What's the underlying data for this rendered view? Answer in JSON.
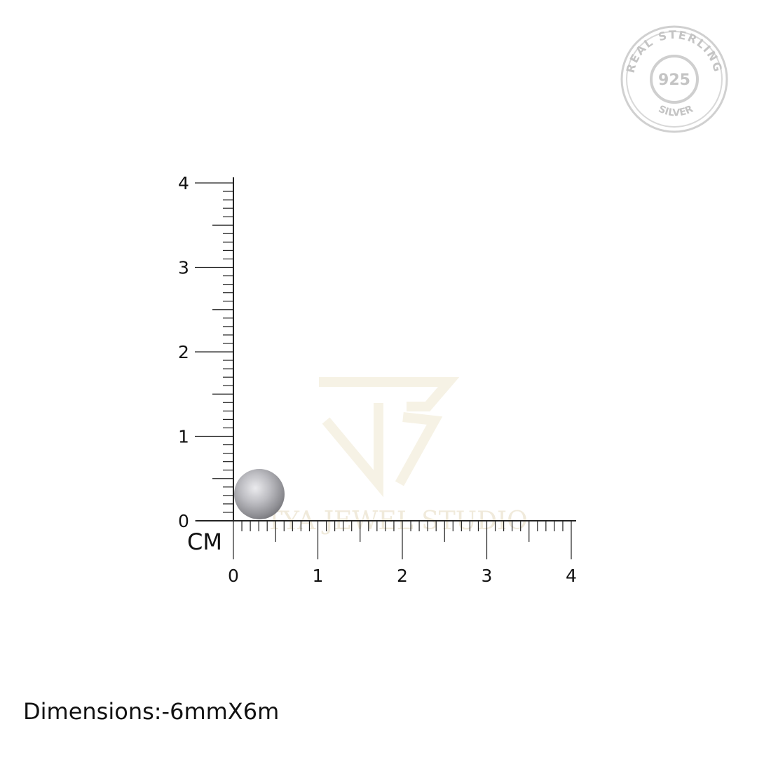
{
  "seal": {
    "top_text": "REAL STERLING",
    "center_text": "925",
    "bottom_text": "SILVER",
    "color": "#c9c9c9"
  },
  "watermark": {
    "text": "TYA JEWEL STUDIO",
    "color": "#f3efe2"
  },
  "ruler": {
    "unit_label": "CM",
    "x_labels": [
      "0",
      "1",
      "2",
      "3",
      "4"
    ],
    "y_labels": [
      "0",
      "1",
      "2",
      "3",
      "4"
    ],
    "line_color": "#222222"
  },
  "product": {
    "name": "silver-ball",
    "diameter_mm": 6,
    "colors": {
      "light": "#e2e2e6",
      "mid": "#a9a9ae",
      "dark": "#77777c"
    }
  },
  "caption": {
    "dimensions": "Dimensions:-6mmX6m"
  }
}
